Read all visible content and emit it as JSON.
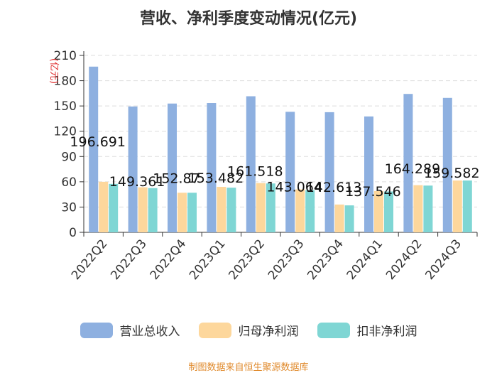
{
  "chart_data": {
    "type": "bar",
    "title": "营收、净利季度变动情况(亿元)",
    "ylabel": "(亿元)",
    "xlabel": "",
    "ylim": [
      0,
      210
    ],
    "yticks": [
      0,
      30,
      60,
      90,
      120,
      150,
      180,
      210
    ],
    "grid": true,
    "legend_position": "bottom",
    "categories": [
      "2022Q2",
      "2022Q3",
      "2022Q4",
      "2023Q1",
      "2023Q2",
      "2023Q3",
      "2023Q4",
      "2024Q1",
      "2024Q2",
      "2024Q3"
    ],
    "series": [
      {
        "name": "营业总收入",
        "color": "#8eb0e0",
        "values": [
          196.691,
          149.361,
          152.87,
          153.482,
          161.518,
          143.064,
          142.613,
          137.546,
          164.289,
          159.582
        ],
        "labels": [
          "196.691",
          "149.361",
          "152.87",
          "153.482",
          "161.518",
          "143.064",
          "142.613",
          "137.546",
          "164.289",
          "159.582"
        ]
      },
      {
        "name": "归母净利润",
        "color": "#fdd79c",
        "values": [
          60,
          53.5,
          47,
          54,
          58.5,
          51,
          33,
          49,
          56,
          61.5
        ]
      },
      {
        "name": "扣非净利润",
        "color": "#7fd6d4",
        "values": [
          57.5,
          52.5,
          47,
          53,
          58,
          50,
          32,
          48.5,
          55.5,
          61.5
        ]
      }
    ]
  },
  "footer": {
    "source": "制图数据来自恒生聚源数据库"
  }
}
